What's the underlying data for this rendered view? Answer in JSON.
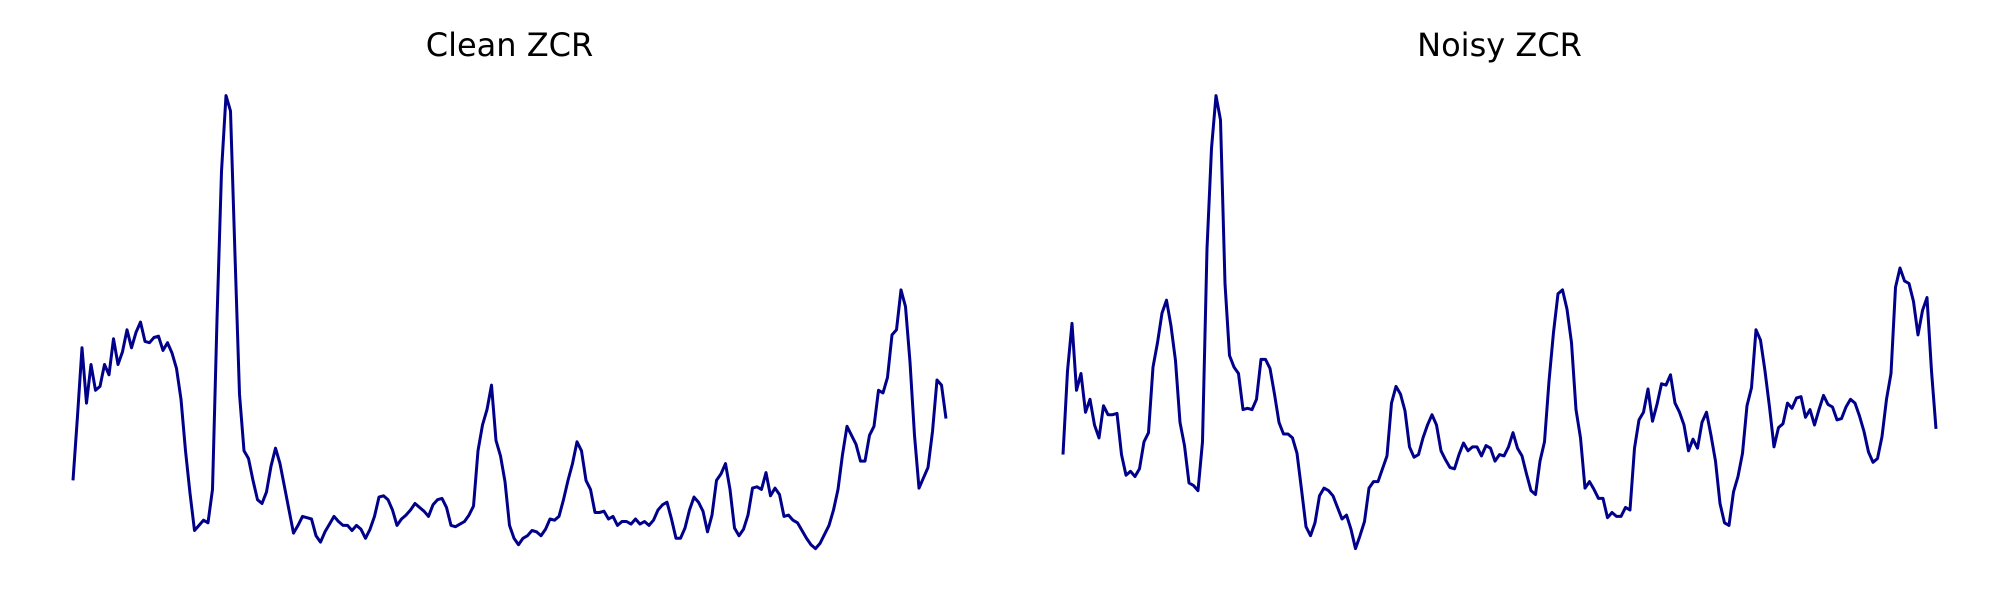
{
  "chart_data": [
    {
      "type": "line",
      "title": "Clean ZCR",
      "color": "#00008b",
      "ylim": [
        0,
        0.38
      ],
      "axes": false,
      "values": [
        0.065,
        0.115,
        0.168,
        0.125,
        0.155,
        0.135,
        0.138,
        0.155,
        0.147,
        0.175,
        0.155,
        0.165,
        0.182,
        0.168,
        0.18,
        0.188,
        0.173,
        0.172,
        0.176,
        0.177,
        0.166,
        0.172,
        0.164,
        0.152,
        0.128,
        0.088,
        0.055,
        0.026,
        0.03,
        0.034,
        0.032,
        0.058,
        0.19,
        0.305,
        0.364,
        0.352,
        0.24,
        0.132,
        0.088,
        0.082,
        0.065,
        0.05,
        0.047,
        0.056,
        0.076,
        0.09,
        0.078,
        0.06,
        0.042,
        0.024,
        0.03,
        0.037,
        0.036,
        0.035,
        0.022,
        0.017,
        0.025,
        0.031,
        0.037,
        0.033,
        0.03,
        0.03,
        0.026,
        0.03,
        0.027,
        0.02,
        0.027,
        0.037,
        0.052,
        0.053,
        0.05,
        0.042,
        0.03,
        0.035,
        0.038,
        0.042,
        0.047,
        0.044,
        0.041,
        0.037,
        0.046,
        0.05,
        0.051,
        0.044,
        0.03,
        0.029,
        0.031,
        0.033,
        0.038,
        0.045,
        0.088,
        0.108,
        0.12,
        0.139,
        0.096,
        0.084,
        0.064,
        0.03,
        0.02,
        0.015,
        0.02,
        0.022,
        0.026,
        0.025,
        0.022,
        0.027,
        0.035,
        0.034,
        0.037,
        0.05,
        0.065,
        0.078,
        0.095,
        0.088,
        0.065,
        0.058,
        0.04,
        0.04,
        0.041,
        0.035,
        0.037,
        0.03,
        0.033,
        0.033,
        0.031,
        0.035,
        0.031,
        0.033,
        0.03,
        0.034,
        0.042,
        0.046,
        0.048,
        0.035,
        0.02,
        0.02,
        0.028,
        0.042,
        0.052,
        0.048,
        0.041,
        0.025,
        0.038,
        0.065,
        0.07,
        0.078,
        0.058,
        0.028,
        0.022,
        0.027,
        0.038,
        0.059,
        0.06,
        0.058,
        0.071,
        0.053,
        0.059,
        0.054,
        0.037,
        0.038,
        0.034,
        0.032,
        0.026,
        0.02,
        0.015,
        0.012,
        0.016,
        0.023,
        0.03,
        0.042,
        0.058,
        0.085,
        0.107,
        0.1,
        0.093,
        0.08,
        0.08,
        0.1,
        0.107,
        0.135,
        0.133,
        0.145,
        0.178,
        0.182,
        0.213,
        0.2,
        0.157,
        0.1,
        0.059,
        0.067,
        0.075,
        0.103,
        0.143,
        0.139,
        0.113
      ]
    },
    {
      "type": "line",
      "title": "Noisy ZCR",
      "color": "#00008b",
      "ylim": [
        0,
        0.38
      ],
      "axes": false,
      "values": [
        0.085,
        0.15,
        0.187,
        0.135,
        0.148,
        0.118,
        0.128,
        0.108,
        0.098,
        0.123,
        0.116,
        0.116,
        0.117,
        0.085,
        0.069,
        0.072,
        0.068,
        0.074,
        0.095,
        0.102,
        0.153,
        0.172,
        0.195,
        0.205,
        0.185,
        0.158,
        0.11,
        0.092,
        0.063,
        0.061,
        0.057,
        0.095,
        0.245,
        0.323,
        0.364,
        0.345,
        0.218,
        0.162,
        0.153,
        0.148,
        0.12,
        0.121,
        0.12,
        0.128,
        0.159,
        0.159,
        0.152,
        0.132,
        0.11,
        0.101,
        0.101,
        0.098,
        0.086,
        0.058,
        0.029,
        0.022,
        0.032,
        0.053,
        0.059,
        0.057,
        0.053,
        0.044,
        0.035,
        0.038,
        0.027,
        0.012,
        0.022,
        0.033,
        0.059,
        0.064,
        0.064,
        0.074,
        0.084,
        0.125,
        0.138,
        0.132,
        0.119,
        0.091,
        0.083,
        0.085,
        0.098,
        0.108,
        0.116,
        0.108,
        0.088,
        0.081,
        0.075,
        0.074,
        0.085,
        0.094,
        0.088,
        0.091,
        0.091,
        0.084,
        0.092,
        0.09,
        0.08,
        0.085,
        0.084,
        0.091,
        0.102,
        0.09,
        0.084,
        0.07,
        0.057,
        0.054,
        0.08,
        0.095,
        0.142,
        0.18,
        0.21,
        0.213,
        0.198,
        0.172,
        0.12,
        0.098,
        0.059,
        0.064,
        0.058,
        0.051,
        0.051,
        0.036,
        0.04,
        0.037,
        0.037,
        0.044,
        0.042,
        0.09,
        0.112,
        0.118,
        0.136,
        0.111,
        0.124,
        0.14,
        0.139,
        0.147,
        0.125,
        0.118,
        0.108,
        0.088,
        0.097,
        0.09,
        0.11,
        0.118,
        0.1,
        0.08,
        0.047,
        0.032,
        0.03,
        0.056,
        0.068,
        0.086,
        0.123,
        0.137,
        0.182,
        0.174,
        0.15,
        0.122,
        0.091,
        0.106,
        0.109,
        0.125,
        0.121,
        0.129,
        0.13,
        0.114,
        0.12,
        0.108,
        0.12,
        0.131,
        0.124,
        0.122,
        0.112,
        0.113,
        0.122,
        0.128,
        0.125,
        0.115,
        0.103,
        0.087,
        0.079,
        0.082,
        0.099,
        0.128,
        0.148,
        0.215,
        0.23,
        0.22,
        0.218,
        0.204,
        0.178,
        0.197,
        0.207,
        0.15,
        0.105
      ]
    }
  ]
}
